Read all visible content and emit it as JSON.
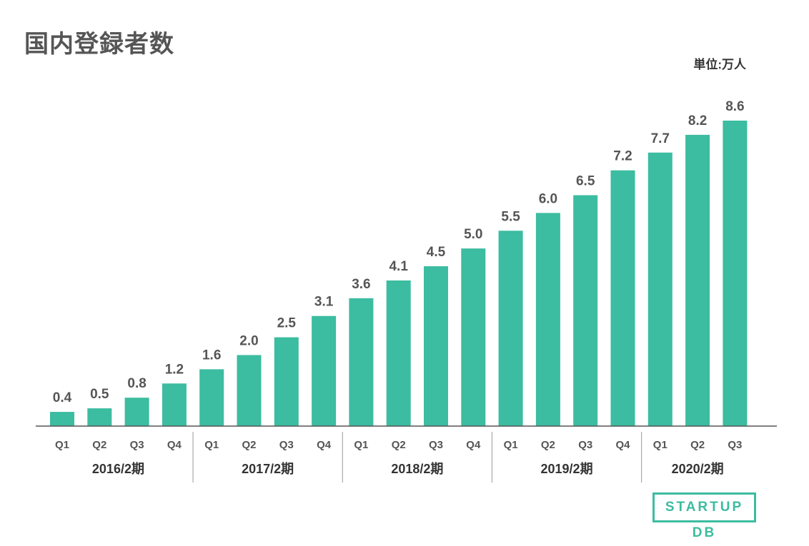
{
  "title": "国内登録者数",
  "unit": "単位:万人",
  "logo": "STARTUP DB",
  "colors": {
    "bar": "#3cbca0",
    "label": "#555555",
    "axis": "#555555",
    "group_label": "#333333"
  },
  "chart_data": {
    "type": "bar",
    "title": "国内登録者数",
    "ylabel": "",
    "xlabel": "",
    "ylim": [
      0,
      8.6
    ],
    "grid": false,
    "categories": [
      "Q1",
      "Q2",
      "Q3",
      "Q4",
      "Q1",
      "Q2",
      "Q3",
      "Q4",
      "Q1",
      "Q2",
      "Q3",
      "Q4",
      "Q1",
      "Q2",
      "Q3",
      "Q4",
      "Q1",
      "Q2",
      "Q3"
    ],
    "values": [
      0.4,
      0.5,
      0.8,
      1.2,
      1.6,
      2.0,
      2.5,
      3.1,
      3.6,
      4.1,
      4.5,
      5.0,
      5.5,
      6.0,
      6.5,
      7.2,
      7.7,
      8.2,
      8.6
    ],
    "value_labels": [
      "0.4",
      "0.5",
      "0.8",
      "1.2",
      "1.6",
      "2.0",
      "2.5",
      "3.1",
      "3.6",
      "4.1",
      "4.5",
      "5.0",
      "5.5",
      "6.0",
      "6.5",
      "7.2",
      "7.7",
      "8.2",
      "8.6"
    ],
    "groups": [
      {
        "label": "2016/2期",
        "count": 4
      },
      {
        "label": "2017/2期",
        "count": 4
      },
      {
        "label": "2018/2期",
        "count": 4
      },
      {
        "label": "2019/2期",
        "count": 4
      },
      {
        "label": "2020/2期",
        "count": 3
      }
    ]
  }
}
